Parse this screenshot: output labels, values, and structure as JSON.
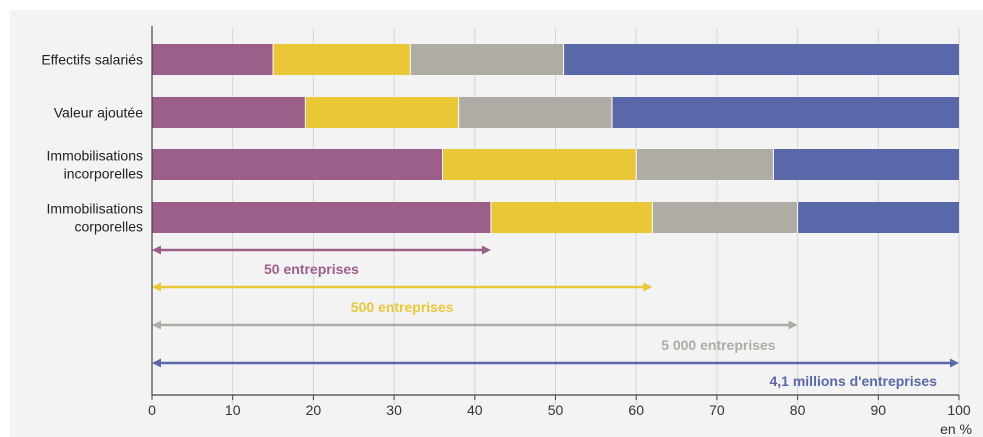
{
  "chart_data": {
    "type": "bar",
    "stacked": true,
    "orientation": "horizontal",
    "categories": [
      [
        "Effectifs salariés"
      ],
      [
        "Valeur ajoutée"
      ],
      [
        "Immobilisations",
        "incorporelles"
      ],
      [
        "Immobilisations",
        "corporelles"
      ]
    ],
    "series": [
      {
        "color": "#9c5f8a",
        "values": [
          15,
          19,
          36,
          42
        ]
      },
      {
        "color": "#eac737",
        "values": [
          17,
          19,
          24,
          20
        ]
      },
      {
        "color": "#afaca6",
        "values": [
          19,
          19,
          17,
          18
        ]
      },
      {
        "color": "#5a68a9",
        "values": [
          49,
          43,
          23,
          20
        ]
      }
    ],
    "xlim": [
      0,
      100
    ],
    "xticks": [
      0,
      10,
      20,
      30,
      40,
      50,
      60,
      70,
      80,
      90,
      100
    ],
    "xunit": "en %",
    "grid": "vertical",
    "annotations": [
      {
        "label": "50 entreprises",
        "start": 0,
        "end": 42,
        "color": "#9c5f8a",
        "label_position": "below-left"
      },
      {
        "label": "500 entreprises",
        "start": 0,
        "end": 62,
        "color": "#eac737",
        "label_position": "below-center"
      },
      {
        "label": "5 000 entreprises",
        "start": 0,
        "end": 80,
        "color": "#afaca6",
        "label_position": "below-right"
      },
      {
        "label": "4,1 millions d'entreprises",
        "start": 0,
        "end": 100,
        "color": "#5a68a9",
        "label_position": "below-right"
      }
    ]
  }
}
